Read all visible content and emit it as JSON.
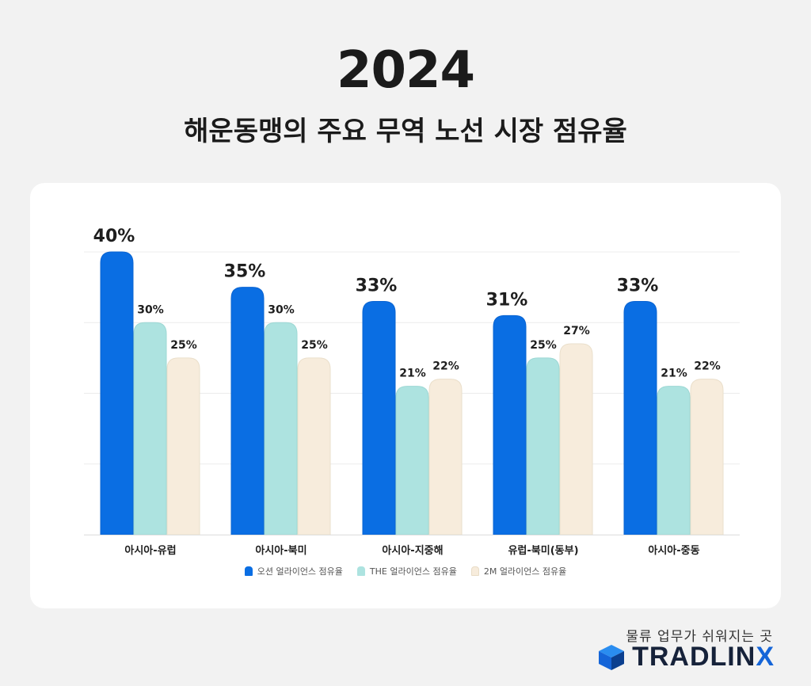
{
  "header": {
    "year": "2024",
    "subtitle": "해운동맹의 주요 무역 노선 시장 점유율"
  },
  "footer": {
    "tagline": "물류 업무가 쉬워지는 곳",
    "brand_main": "TRADLIN",
    "brand_x": "X"
  },
  "colors": {
    "ocean": "#0a6ee3",
    "the": "#ade3e0",
    "twoM": "#f7ecdc"
  },
  "chart_data": {
    "type": "bar",
    "title": "해운동맹의 주요 무역 노선 시장 점유율",
    "categories": [
      "아시아-유럽",
      "아시아-북미",
      "아시아-지중해",
      "유럽-북미(동부)",
      "아시아-중동"
    ],
    "series": [
      {
        "name": "오션 얼라이언스 점유율",
        "values": [
          40,
          35,
          33,
          31,
          33
        ],
        "labels": [
          "40%",
          "35%",
          "33%",
          "31%",
          "33%"
        ],
        "color": "#0a6ee3"
      },
      {
        "name": "THE 얼라이언스 점유율",
        "values": [
          30,
          30,
          21,
          25,
          21
        ],
        "labels": [
          "30%",
          "30%",
          "21%",
          "25%",
          "21%"
        ],
        "color": "#ade3e0"
      },
      {
        "name": "2M 얼라이언스 점유율",
        "values": [
          25,
          25,
          22,
          27,
          22
        ],
        "labels": [
          "25%",
          "25%",
          "22%",
          "27%",
          "22%"
        ],
        "color": "#f7ecdc"
      }
    ],
    "ylim": [
      0,
      40
    ],
    "grid": true,
    "legend": "bottom-center"
  }
}
